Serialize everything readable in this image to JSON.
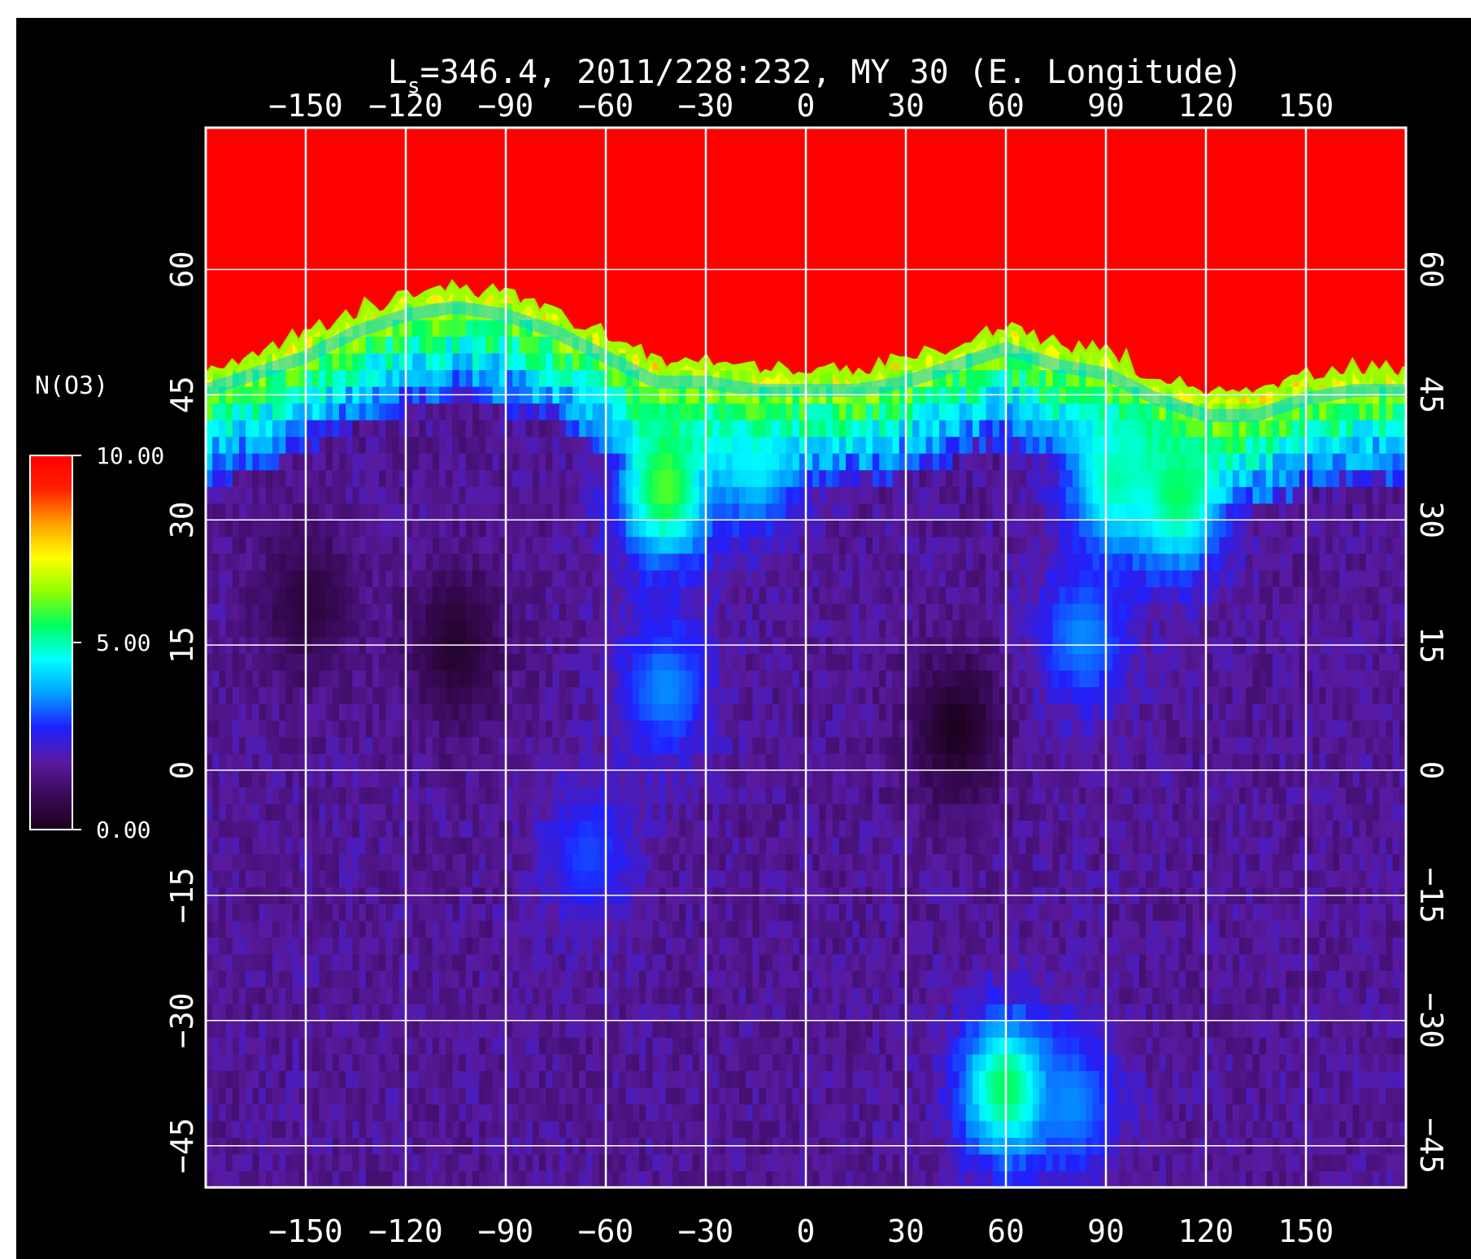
{
  "chart_data": {
    "type": "heatmap",
    "title": {
      "prefix": "L",
      "subscript": "s",
      "rest": "=346.4, 2011/228:232, MY 30 (E. Longitude)"
    },
    "xlabel": "E. Longitude",
    "ylabel": "",
    "xlim": [
      -180,
      180
    ],
    "ylim": [
      -50,
      77
    ],
    "x_ticks": [
      -150,
      -120,
      -90,
      -60,
      -30,
      0,
      30,
      60,
      90,
      120,
      150
    ],
    "y_ticks": [
      -45,
      -30,
      -15,
      0,
      15,
      30,
      45,
      60
    ],
    "x_tick_labels": [
      "−150",
      "−120",
      "−90",
      "−60",
      "−30",
      "0",
      "30",
      "60",
      "90",
      "120",
      "150"
    ],
    "y_tick_labels": [
      "−45",
      "−30",
      "−15",
      "0",
      "15",
      "30",
      "45",
      "60"
    ],
    "grid": true,
    "colorbar": {
      "label": "N(O3)",
      "min": 0,
      "max": 10,
      "tick_values": [
        10,
        5,
        0
      ],
      "tick_labels": [
        "10.00",
        "5.00",
        "0.00"
      ],
      "colors": [
        "#1a001a",
        "#3a0a5a",
        "#5a1aa0",
        "#2020ff",
        "#00a0ff",
        "#00ffff",
        "#00ff60",
        "#90ff00",
        "#ffff00",
        "#ffa000",
        "#ff2000",
        "#ff0000"
      ]
    },
    "description_fields": {
      "saturated_boundary_lat_by_lon": {
        "lon": [
          -180,
          -165,
          -150,
          -135,
          -120,
          -105,
          -90,
          -75,
          -60,
          -45,
          -30,
          -15,
          0,
          15,
          30,
          45,
          60,
          75,
          90,
          105,
          120,
          135,
          150,
          165,
          180
        ],
        "lat": [
          48,
          50,
          52,
          55,
          57,
          58,
          57,
          55,
          52,
          49,
          49,
          48,
          48,
          48,
          49,
          51,
          53,
          51,
          50,
          47,
          45,
          45,
          47,
          48,
          48
        ]
      },
      "features": [
        {
          "lon": -105,
          "lat": 15,
          "value": 0.3
        },
        {
          "lon": -150,
          "lat": 20,
          "value": 0.5
        },
        {
          "lon": -42,
          "lat": 34,
          "value": 6.0
        },
        {
          "lon": -15,
          "lat": 38,
          "value": 4.5
        },
        {
          "lon": 92,
          "lat": 35,
          "value": 5.0
        },
        {
          "lon": 112,
          "lat": 33,
          "value": 5.5
        },
        {
          "lon": -42,
          "lat": 10,
          "value": 3.5
        },
        {
          "lon": 83,
          "lat": 16,
          "value": 3.5
        },
        {
          "lon": -65,
          "lat": -10,
          "value": 3.0
        },
        {
          "lon": 60,
          "lat": -38,
          "value": 5.5
        },
        {
          "lon": 80,
          "lat": -40,
          "value": 3.5
        },
        {
          "lon": 45,
          "lat": 5,
          "value": 0.1
        }
      ]
    }
  }
}
